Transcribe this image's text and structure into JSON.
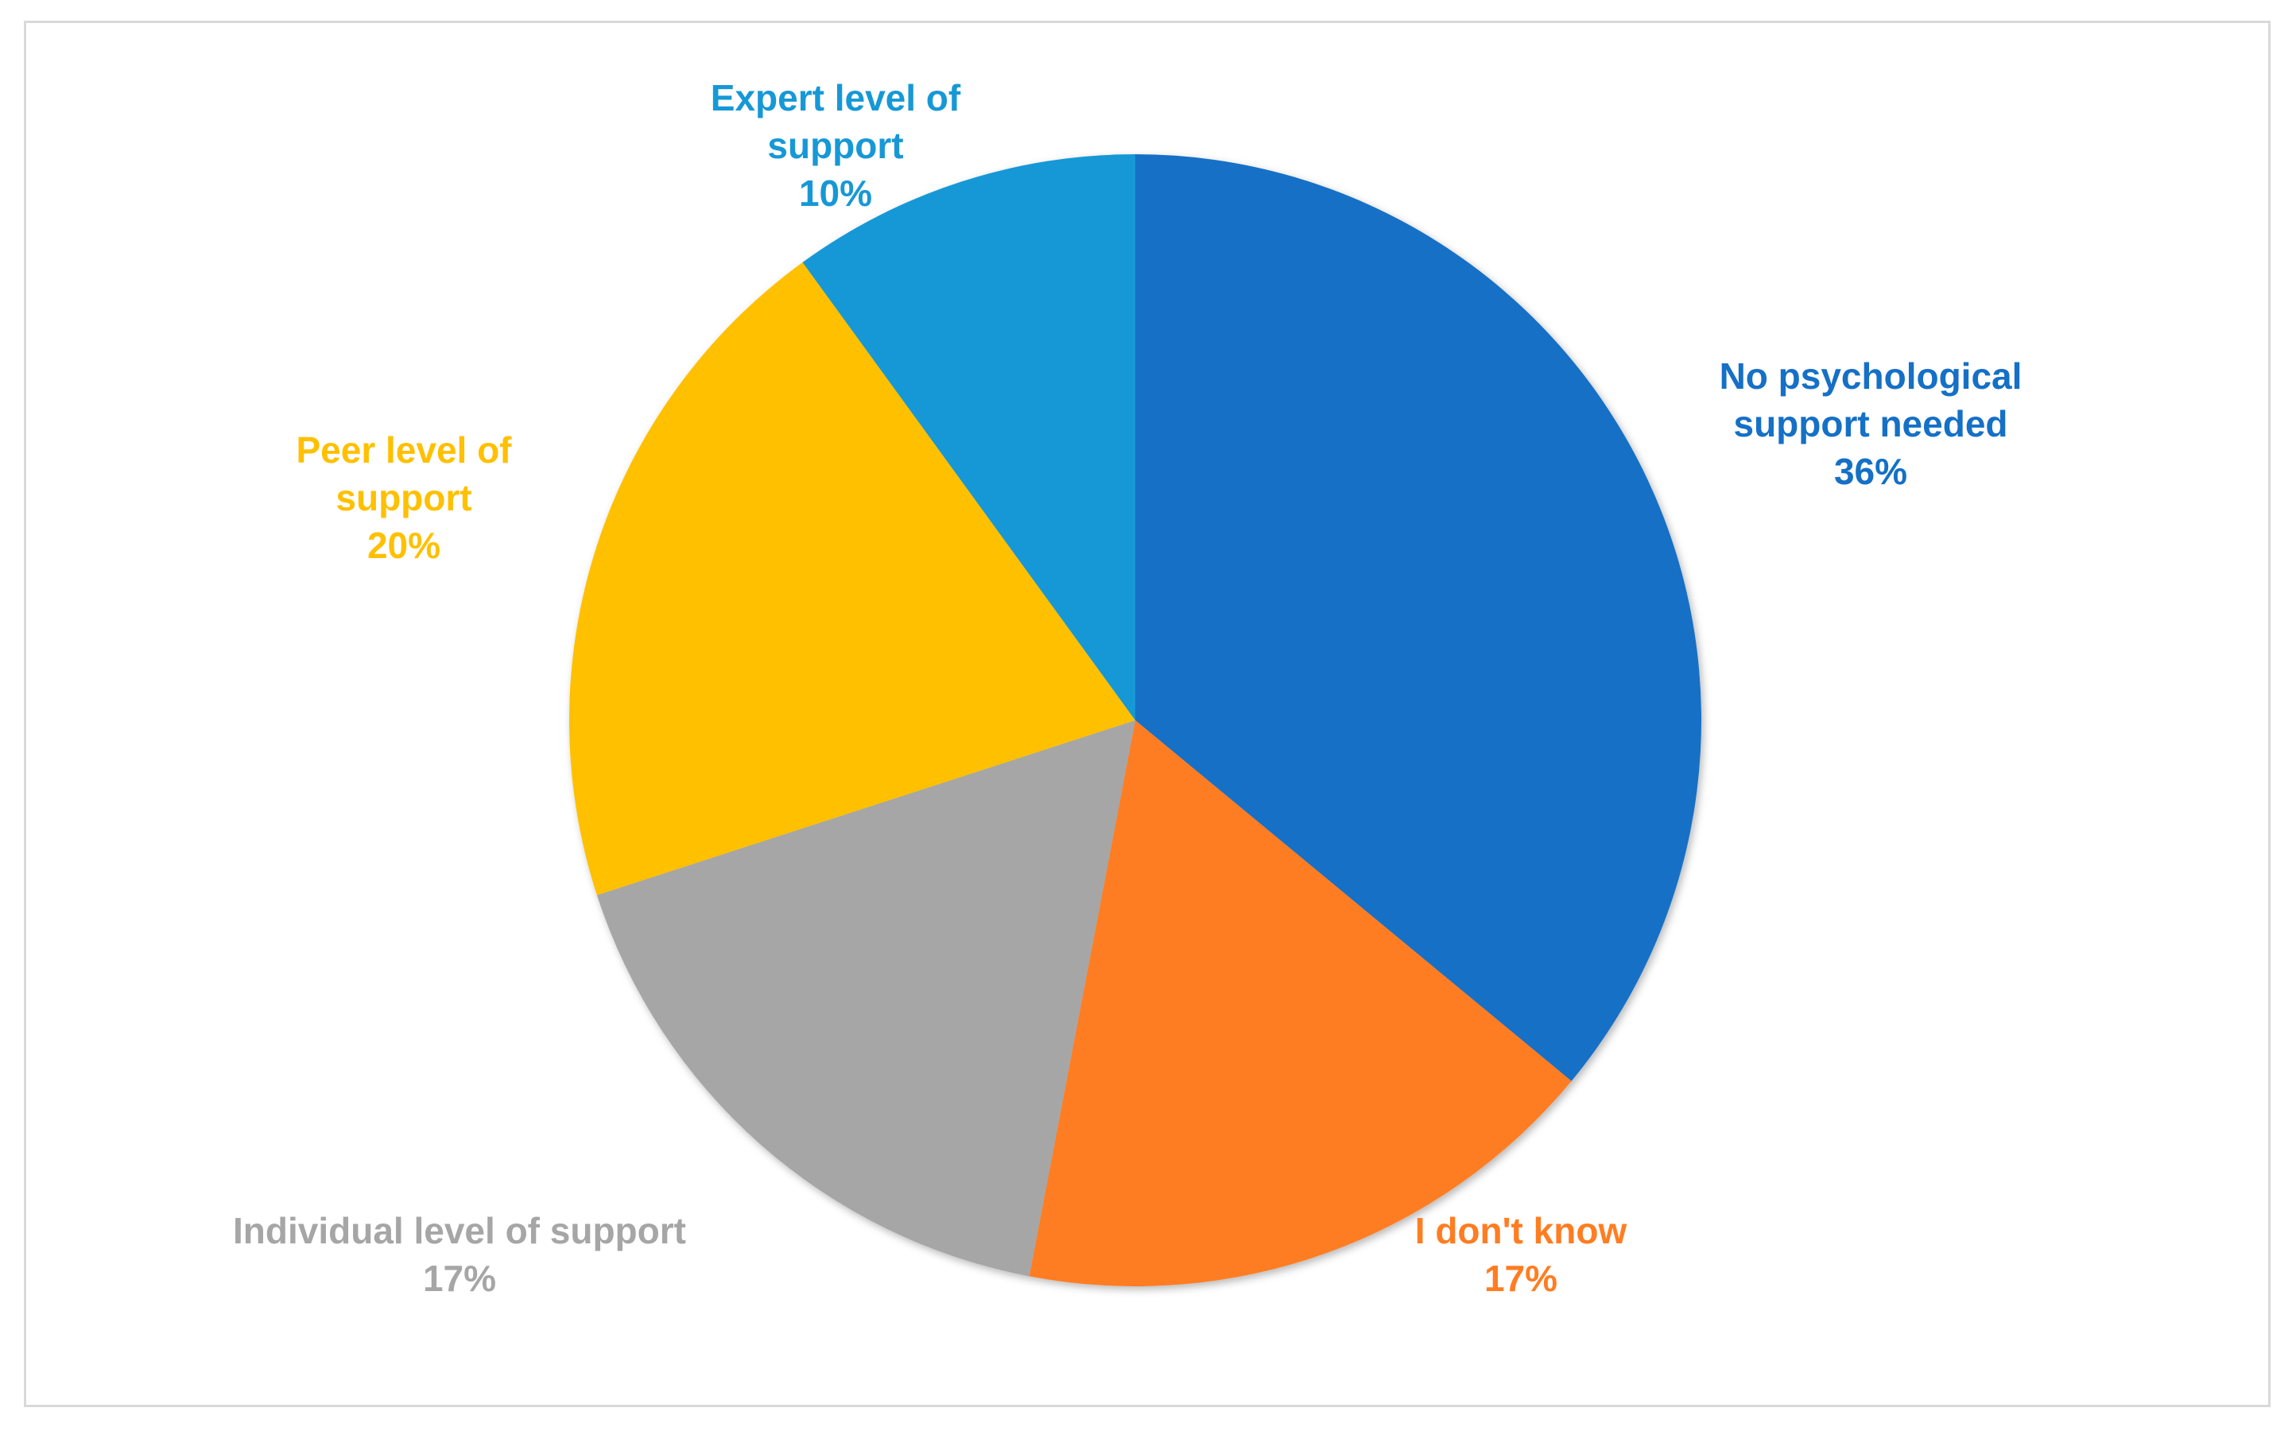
{
  "chart_data": {
    "type": "pie",
    "title": "",
    "start_angle_deg": 0,
    "direction": "clockwise",
    "slices": [
      {
        "name": "No psychological support needed",
        "label_lines": [
          "No psychological",
          "support needed"
        ],
        "value": 36,
        "value_label": "36%",
        "color": "#1570C6"
      },
      {
        "name": "I don't know",
        "label_lines": [
          "I don't know"
        ],
        "value": 17,
        "value_label": "17%",
        "color": "#FF7D22"
      },
      {
        "name": "Individual level of support",
        "label_lines": [
          "Individual level of support"
        ],
        "value": 17,
        "value_label": "17%",
        "color": "#A6A6A6"
      },
      {
        "name": "Peer level of support",
        "label_lines": [
          "Peer level of",
          "support"
        ],
        "value": 20,
        "value_label": "20%",
        "color": "#FFC000"
      },
      {
        "name": "Expert level of support",
        "label_lines": [
          "Expert level of",
          "support"
        ],
        "value": 10,
        "value_label": "10%",
        "color": "#1798D6"
      }
    ],
    "legend": "none",
    "data_labels": "outside, colored by slice"
  }
}
